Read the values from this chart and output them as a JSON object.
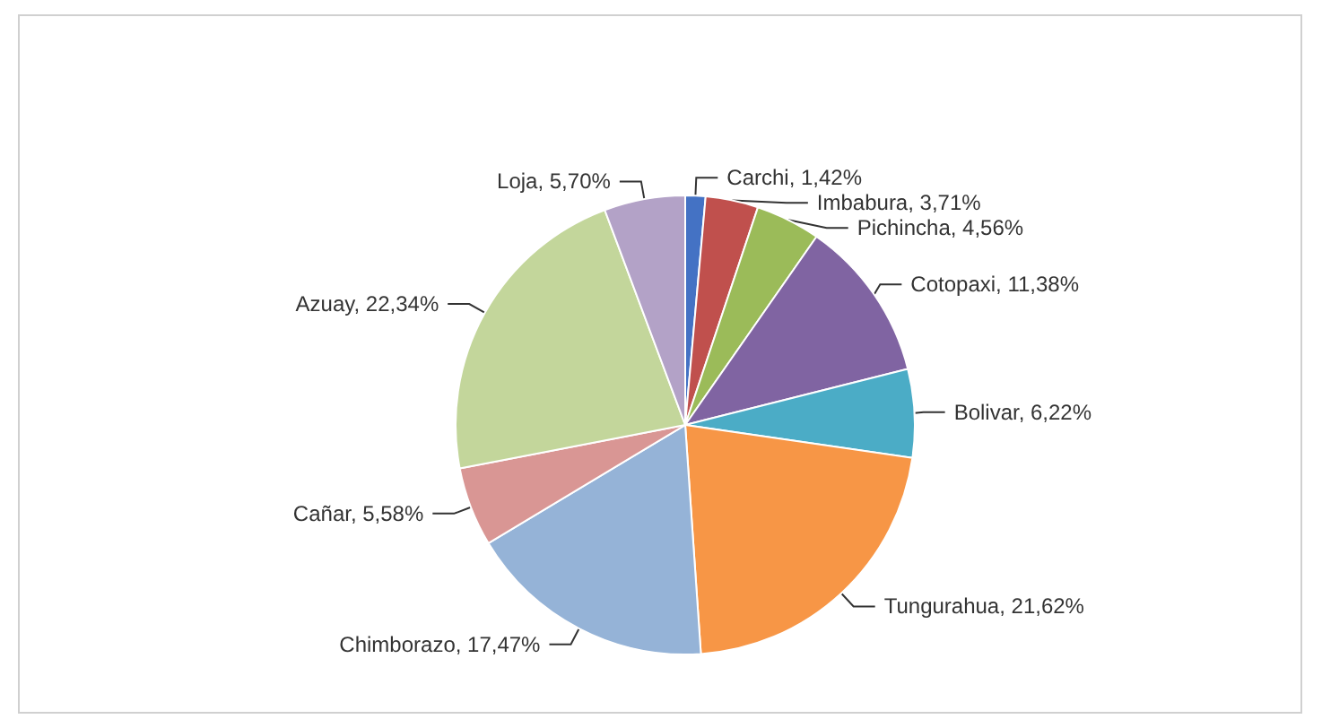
{
  "chart_data": {
    "type": "pie",
    "categories": [
      "Carchi",
      "Imbabura",
      "Pichincha",
      "Cotopaxi",
      "Bolivar",
      "Tungurahua",
      "Chimborazo",
      "Cañar",
      "Azuay",
      "Loja"
    ],
    "values": [
      1.42,
      3.71,
      4.56,
      11.38,
      6.22,
      21.62,
      17.47,
      5.58,
      22.34,
      5.7
    ],
    "value_labels": [
      "1,42%",
      "3,71%",
      "4,56%",
      "11,38%",
      "6,22%",
      "21,62%",
      "17,47%",
      "5,58%",
      "22,34%",
      "5,70%"
    ],
    "colors": [
      "#4472c4",
      "#c0504d",
      "#9bbb59",
      "#8064a2",
      "#4bacc6",
      "#f79646",
      "#95b3d7",
      "#d99694",
      "#c3d69b",
      "#b3a2c7"
    ],
    "legend": false
  }
}
